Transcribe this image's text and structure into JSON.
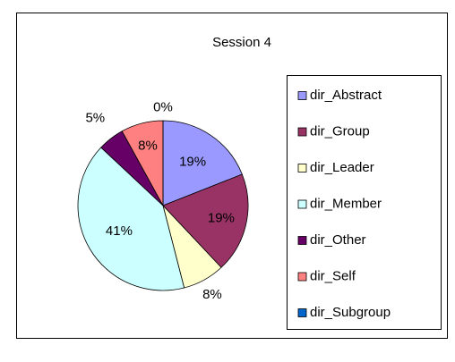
{
  "chart_data": {
    "type": "pie",
    "title": "Session 4",
    "categories": [
      "dir_Abstract",
      "dir_Group",
      "dir_Leader",
      "dir_Member",
      "dir_Other",
      "dir_Self",
      "dir_Subgroup"
    ],
    "values": [
      19,
      19,
      8,
      41,
      5,
      8,
      0
    ],
    "value_labels": [
      "19%",
      "19%",
      "8%",
      "41%",
      "5%",
      "8%",
      "0%"
    ],
    "colors": [
      "#9999ff",
      "#993366",
      "#ffffcc",
      "#ccffff",
      "#660066",
      "#ff8080",
      "#0066cc"
    ],
    "legend": "right"
  }
}
